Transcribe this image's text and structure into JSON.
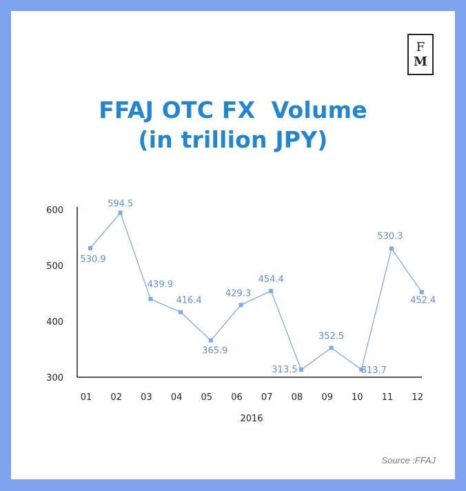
{
  "logo": {
    "letter_top": "F",
    "letter_bottom": "M"
  },
  "title_lines": [
    "FFAJ OTC FX  Volume",
    "(in trillion JPY)"
  ],
  "source": "Source :FFAJ",
  "colors": {
    "background": "#7fa3ef",
    "title": "#2185cf",
    "line": "#7ca9ec",
    "label": "#5b8fd9",
    "axis": "#222222"
  },
  "chart_data": {
    "type": "line",
    "title": "FFAJ OTC FX  Volume (in trillion JPY)",
    "xlabel": "2016",
    "ylabel": "",
    "categories": [
      "01",
      "02",
      "03",
      "04",
      "05",
      "06",
      "07",
      "08",
      "09",
      "10",
      "11",
      "12"
    ],
    "series": [
      {
        "values": [
          530.9,
          594.5,
          439.9,
          416.4,
          365.9,
          429.3,
          454.4,
          313.5,
          352.5,
          313.7,
          530.3,
          452.4
        ]
      }
    ],
    "value_labels": [
      "530.9",
      "594.5",
      "439.9",
      "416.4",
      "365.9",
      "429.3",
      "454.4",
      "313.5",
      "352.5",
      "313.7",
      "530.3",
      "452.4"
    ],
    "yticks": [
      "300",
      "400",
      "500",
      "600"
    ],
    "ylim": [
      300,
      600
    ],
    "grid": false,
    "legend": "none"
  }
}
